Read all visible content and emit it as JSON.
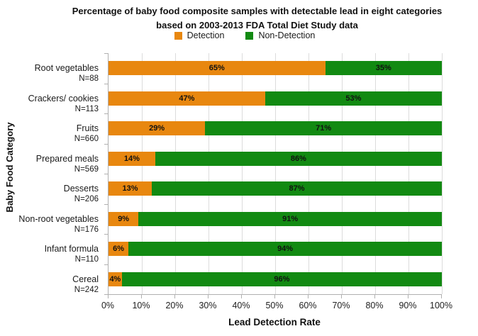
{
  "chart_data": {
    "type": "bar",
    "orientation": "horizontal",
    "stacked": true,
    "title_line1": "Percentage of baby food composite samples with detectable lead in eight categories",
    "title_line2": "based on 2003-2013 FDA Total Diet Study data",
    "xlabel": "Lead Detection Rate",
    "ylabel": "Baby Food Category",
    "xlim": [
      0,
      100
    ],
    "x_ticks": [
      "0%",
      "10%",
      "20%",
      "30%",
      "40%",
      "50%",
      "60%",
      "70%",
      "80%",
      "90%",
      "100%"
    ],
    "grid": "vertical-on",
    "legend_position": "top-center",
    "legend": [
      {
        "name": "Detection",
        "color": "#E8870F"
      },
      {
        "name": "Non-Detection",
        "color": "#128A12"
      }
    ],
    "categories": [
      {
        "label": "Root vegetables",
        "n_label": "N=88",
        "detection": 65,
        "non_detection": 35,
        "detection_label": "65%",
        "non_detection_label": "35%"
      },
      {
        "label": "Crackers/ cookies",
        "n_label": "N=113",
        "detection": 47,
        "non_detection": 53,
        "detection_label": "47%",
        "non_detection_label": "53%"
      },
      {
        "label": "Fruits",
        "n_label": "N=660",
        "detection": 29,
        "non_detection": 71,
        "detection_label": "29%",
        "non_detection_label": "71%"
      },
      {
        "label": "Prepared meals",
        "n_label": "N=569",
        "detection": 14,
        "non_detection": 86,
        "detection_label": "14%",
        "non_detection_label": "86%"
      },
      {
        "label": "Desserts",
        "n_label": "N=206",
        "detection": 13,
        "non_detection": 87,
        "detection_label": "13%",
        "non_detection_label": "87%"
      },
      {
        "label": "Non-root vegetables",
        "n_label": "N=176",
        "detection": 9,
        "non_detection": 91,
        "detection_label": "9%",
        "non_detection_label": "91%"
      },
      {
        "label": "Infant formula",
        "n_label": "N=110",
        "detection": 6,
        "non_detection": 94,
        "detection_label": "6%",
        "non_detection_label": "94%"
      },
      {
        "label": "Cereal",
        "n_label": "N=242",
        "detection": 4,
        "non_detection": 96,
        "detection_label": "4%",
        "non_detection_label": "96%"
      }
    ]
  }
}
